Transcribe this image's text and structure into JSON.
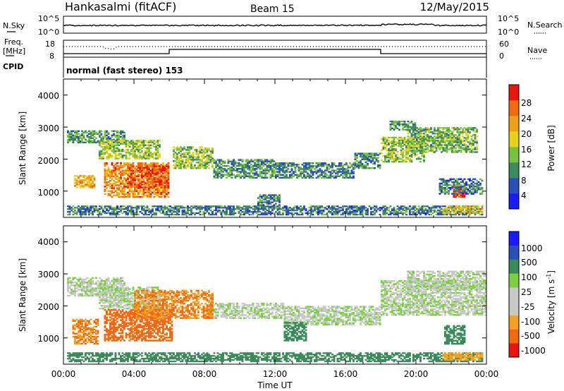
{
  "header": {
    "station": "Hankasalmi (fitACF)",
    "beam": "Beam 15",
    "date": "12/May/2015"
  },
  "left_labels": {
    "nsky": "N.Sky",
    "freq": "Freq.",
    "freq_unit": "[MHz]",
    "cpid": "CPID"
  },
  "right_labels": {
    "nsearch": "N.Search",
    "nave": "Nave"
  },
  "noise_panel": {
    "left_ticks": [
      "10^5",
      "10^0"
    ],
    "right_ticks": [
      "10^5",
      "10^0"
    ]
  },
  "freq_panel": {
    "left_ticks": [
      "18",
      "8"
    ],
    "right_ticks": [
      "60",
      "0"
    ]
  },
  "cpid_text": "normal (fast stereo) 153",
  "colors": {
    "power": [
      "#1a1aff",
      "#2b4fb8",
      "#3f8a5a",
      "#79c23c",
      "#e6d21a",
      "#f0a018",
      "#f26a10",
      "#e8160c"
    ],
    "velocity": [
      "#e8160c",
      "#f26a10",
      "#f5a020",
      "#c8c8c8",
      "#c8c8c8",
      "#7ad040",
      "#3a8a5a",
      "#2b4fb8",
      "#1a1aff"
    ]
  },
  "chart_data": [
    {
      "type": "heatmap",
      "name_hint": "power-panel",
      "ylabel": "Slant Range [km]",
      "yticks": [
        "4000",
        "3000",
        "2000",
        "1000"
      ],
      "ylim": [
        180,
        4500
      ],
      "xlim": [
        0,
        24
      ],
      "colorbar_label": "Power [dB]",
      "colorbar_ticks": [
        "28",
        "24",
        "20",
        "16",
        "12",
        "8",
        "4"
      ],
      "value_range": [
        0,
        30
      ],
      "clusters": [
        {
          "t0": 0.2,
          "t1": 3.5,
          "r0": 2500,
          "r1": 2900,
          "v": 10
        },
        {
          "t0": 2.0,
          "t1": 5.5,
          "r0": 2000,
          "r1": 2600,
          "v": 14
        },
        {
          "t0": 0.6,
          "t1": 1.8,
          "r0": 1100,
          "r1": 1500,
          "v": 20
        },
        {
          "t0": 2.3,
          "t1": 6.0,
          "r0": 800,
          "r1": 1900,
          "v": 22
        },
        {
          "t0": 3.6,
          "t1": 6.0,
          "r0": 1100,
          "r1": 1800,
          "v": 26
        },
        {
          "t0": 6.2,
          "t1": 8.5,
          "r0": 1700,
          "r1": 2400,
          "v": 14
        },
        {
          "t0": 8.5,
          "t1": 12.0,
          "r0": 1400,
          "r1": 2000,
          "v": 10
        },
        {
          "t0": 12.0,
          "t1": 16.5,
          "r0": 1400,
          "r1": 1900,
          "v": 9
        },
        {
          "t0": 16.5,
          "t1": 18.0,
          "r0": 1700,
          "r1": 2200,
          "v": 9
        },
        {
          "t0": 18.0,
          "t1": 20.5,
          "r0": 1900,
          "r1": 2700,
          "v": 14
        },
        {
          "t0": 19.5,
          "t1": 23.5,
          "r0": 2200,
          "r1": 3000,
          "v": 12
        },
        {
          "t0": 18.5,
          "t1": 20.0,
          "r0": 2900,
          "r1": 3200,
          "v": 10
        },
        {
          "t0": 22.1,
          "t1": 22.8,
          "r0": 800,
          "r1": 1200,
          "v": 28
        },
        {
          "t0": 21.3,
          "t1": 23.8,
          "r0": 900,
          "r1": 1400,
          "v": 8
        },
        {
          "t0": 0.2,
          "t1": 23.8,
          "r0": 250,
          "r1": 550,
          "v": 8
        },
        {
          "t0": 21.5,
          "t1": 23.8,
          "r0": 300,
          "r1": 550,
          "v": 18
        },
        {
          "t0": 11.0,
          "t1": 12.3,
          "r0": 500,
          "r1": 900,
          "v": 8
        }
      ]
    },
    {
      "type": "heatmap",
      "name_hint": "velocity-panel",
      "ylabel": "Slant Range [km]",
      "yticks": [
        "4000",
        "3000",
        "2000",
        "1000"
      ],
      "ylim": [
        180,
        4500
      ],
      "xlim": [
        0,
        24
      ],
      "xticks": [
        "00:00",
        "04:00",
        "08:00",
        "12:00",
        "16:00",
        "20:00",
        "00:00"
      ],
      "xlabel": "Time UT",
      "colorbar_label": "Velocity [m s",
      "colorbar_exp": "-1",
      "colorbar_ticks": [
        "1000",
        "500",
        "100",
        "25",
        "-25",
        "-100",
        "-500",
        "-1000"
      ],
      "clusters": [
        {
          "t0": 0.2,
          "t1": 3.5,
          "r0": 2300,
          "r1": 2900,
          "v": 0
        },
        {
          "t0": 2.0,
          "t1": 5.5,
          "r0": 1900,
          "r1": 2600,
          "v": 0
        },
        {
          "t0": 0.5,
          "t1": 2.0,
          "r0": 800,
          "r1": 1600,
          "v": -300
        },
        {
          "t0": 2.3,
          "t1": 6.2,
          "r0": 900,
          "r1": 1900,
          "v": -400
        },
        {
          "t0": 4.0,
          "t1": 8.5,
          "r0": 1600,
          "r1": 2500,
          "v": -300
        },
        {
          "t0": 8.5,
          "t1": 12.5,
          "r0": 1600,
          "r1": 2100,
          "v": 0
        },
        {
          "t0": 12.5,
          "t1": 18.0,
          "r0": 1400,
          "r1": 2000,
          "v": 0
        },
        {
          "t0": 18.0,
          "t1": 24.0,
          "r0": 1700,
          "r1": 2800,
          "v": 0
        },
        {
          "t0": 19.5,
          "t1": 24.0,
          "r0": 2500,
          "r1": 3100,
          "v": 0
        },
        {
          "t0": 12.5,
          "t1": 13.8,
          "r0": 900,
          "r1": 1500,
          "v": 150
        },
        {
          "t0": 21.6,
          "t1": 22.8,
          "r0": 800,
          "r1": 1400,
          "v": 200
        },
        {
          "t0": 0.2,
          "t1": 23.8,
          "r0": 250,
          "r1": 550,
          "v": 100
        },
        {
          "t0": 21.5,
          "t1": 23.8,
          "r0": 300,
          "r1": 550,
          "v": -150
        }
      ]
    }
  ]
}
